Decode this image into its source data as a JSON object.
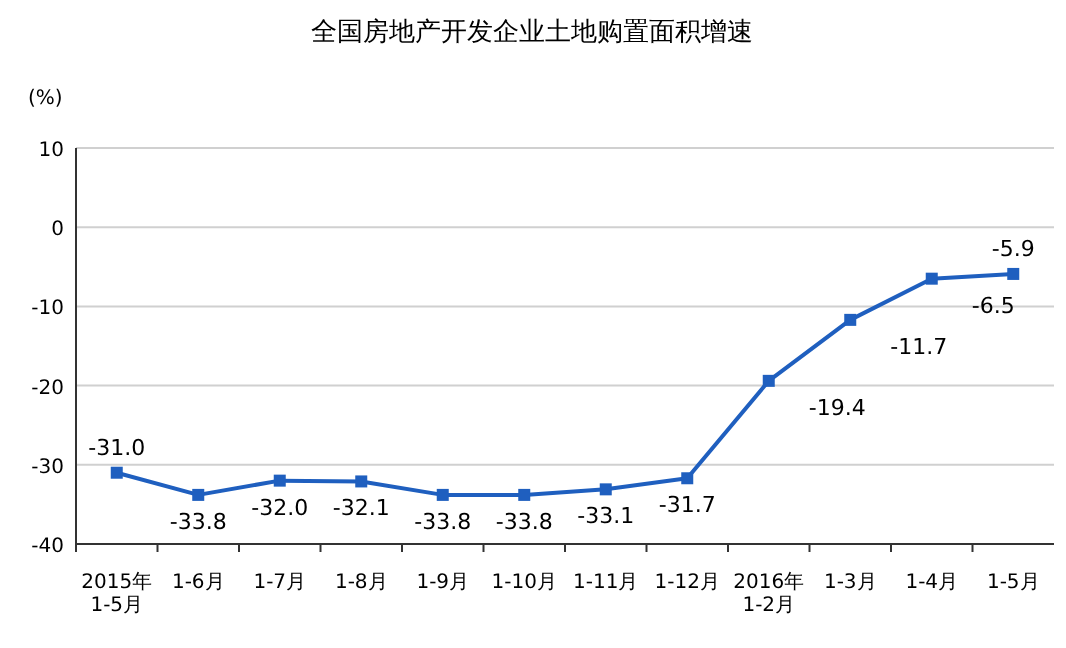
{
  "chart_data": {
    "type": "line",
    "title": "全国房地产开发企业土地购置面积增速",
    "ylabel": "(%)",
    "categories": [
      "2015年\n1-5月",
      "1-6月",
      "1-7月",
      "1-8月",
      "1-9月",
      "1-10月",
      "1-11月",
      "1-12月",
      "2016年\n1-2月",
      "1-3月",
      "1-4月",
      "1-5月"
    ],
    "series": [
      {
        "color": "#1f5fbf",
        "values": [
          -31.0,
          -33.8,
          -32.0,
          -32.1,
          -33.8,
          -33.8,
          -33.1,
          -31.7,
          -19.4,
          -11.7,
          -6.5,
          -5.9
        ],
        "value_labels": [
          "-31.0",
          "-33.8",
          "-32.0",
          "-32.1",
          "-33.8",
          "-33.8",
          "-33.1",
          "-31.7",
          "-19.4",
          "-11.7",
          "-6.5",
          "-5.9"
        ]
      }
    ],
    "ylim": [
      -40,
      10
    ],
    "yticks": [
      -40,
      -30,
      -20,
      -10,
      0,
      10
    ],
    "grid": "y",
    "marker": "square"
  }
}
